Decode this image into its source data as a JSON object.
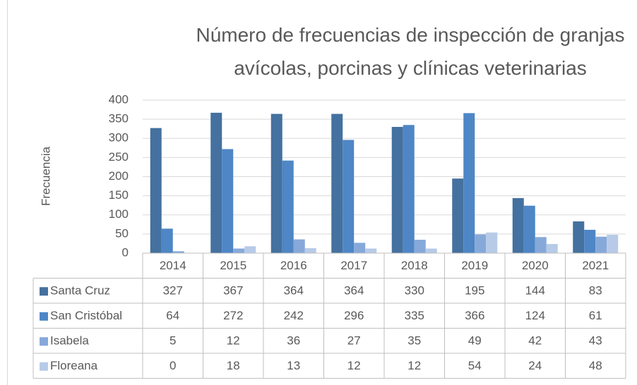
{
  "chart_data": {
    "type": "bar",
    "title": "Número de frecuencias de inspección de granjas avícolas, porcinas y clínicas veterinarias",
    "y_label": "Frecuencia",
    "categories": [
      "2014",
      "2015",
      "2016",
      "2017",
      "2018",
      "2019",
      "2020",
      "2021"
    ],
    "series": [
      {
        "name": "Santa Cruz",
        "color": "#44719f",
        "values": [
          327,
          367,
          364,
          364,
          330,
          195,
          144,
          83
        ]
      },
      {
        "name": "San Cristóbal",
        "color": "#4e86c6",
        "values": [
          64,
          272,
          242,
          296,
          335,
          366,
          124,
          61
        ]
      },
      {
        "name": "Isabela",
        "color": "#86a9da",
        "values": [
          5,
          12,
          36,
          27,
          35,
          49,
          42,
          43
        ]
      },
      {
        "name": "Floreana",
        "color": "#b7cbe8",
        "values": [
          0,
          18,
          13,
          12,
          12,
          54,
          24,
          48
        ]
      }
    ],
    "ylim": [
      0,
      400
    ],
    "yticks": [
      0,
      50,
      100,
      150,
      200,
      250,
      300,
      350,
      400
    ],
    "grid": true,
    "data_table": true
  }
}
